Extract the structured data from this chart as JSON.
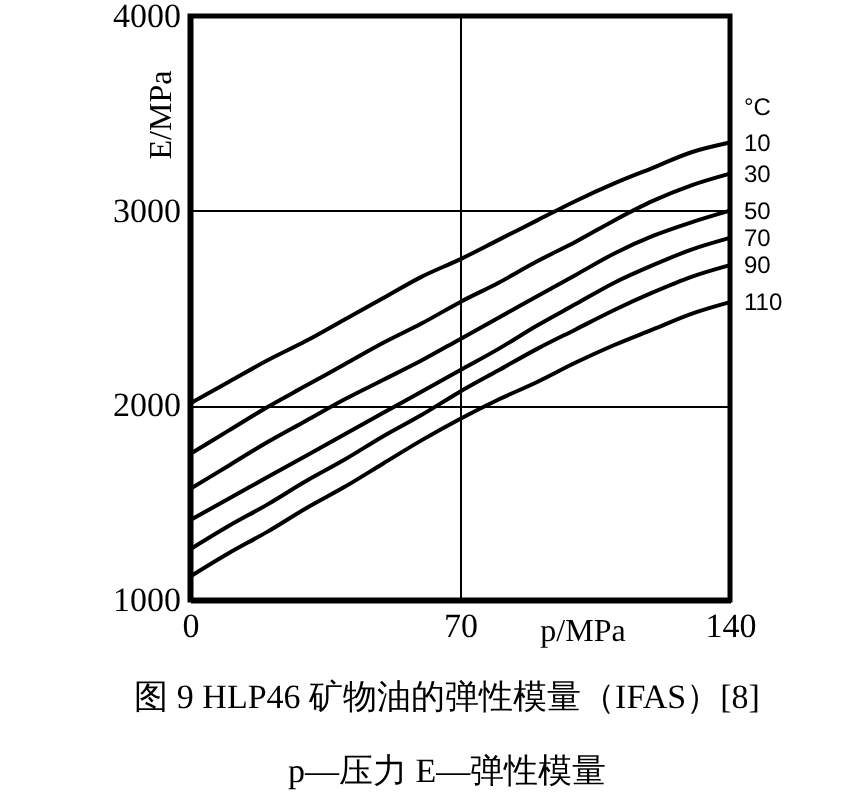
{
  "chart_data": {
    "type": "line",
    "title": "图 9 HLP46 矿物油的弹性模量（IFAS）[8]",
    "subtitle": "p—压力  E—弹性模量",
    "xlabel": "p/MPa",
    "ylabel": "E/MPa",
    "legend_title": "°C",
    "x": [
      0,
      10,
      20,
      30,
      40,
      50,
      60,
      70,
      80,
      90,
      100,
      110,
      120,
      130,
      140
    ],
    "xlim": [
      0,
      140
    ],
    "xticks": [
      0,
      70,
      140
    ],
    "ylim": [
      1000,
      4000
    ],
    "yticks": [
      1000,
      2000,
      3000,
      4000
    ],
    "grid": true,
    "line_style": "solid",
    "series": [
      {
        "name": "10",
        "color": "#000000",
        "values": [
          2010,
          2120,
          2230,
          2330,
          2440,
          2550,
          2660,
          2750,
          2850,
          2950,
          3050,
          3140,
          3220,
          3300,
          3350
        ]
      },
      {
        "name": "30",
        "color": "#000000",
        "values": [
          1750,
          1870,
          1990,
          2100,
          2210,
          2320,
          2420,
          2530,
          2630,
          2740,
          2840,
          2950,
          3050,
          3130,
          3190
        ]
      },
      {
        "name": "50",
        "color": "#000000",
        "values": [
          1570,
          1690,
          1810,
          1920,
          2030,
          2130,
          2230,
          2340,
          2450,
          2560,
          2670,
          2780,
          2870,
          2940,
          3000
        ]
      },
      {
        "name": "70",
        "color": "#000000",
        "values": [
          1410,
          1520,
          1630,
          1740,
          1850,
          1960,
          2070,
          2180,
          2290,
          2410,
          2520,
          2630,
          2720,
          2800,
          2860
        ]
      },
      {
        "name": "90",
        "color": "#000000",
        "values": [
          1260,
          1380,
          1490,
          1610,
          1720,
          1840,
          1950,
          2070,
          2180,
          2290,
          2390,
          2490,
          2580,
          2660,
          2720
        ]
      },
      {
        "name": "110",
        "color": "#000000",
        "values": [
          1120,
          1240,
          1350,
          1470,
          1580,
          1700,
          1820,
          1930,
          2030,
          2120,
          2220,
          2310,
          2390,
          2470,
          2530
        ]
      }
    ]
  }
}
